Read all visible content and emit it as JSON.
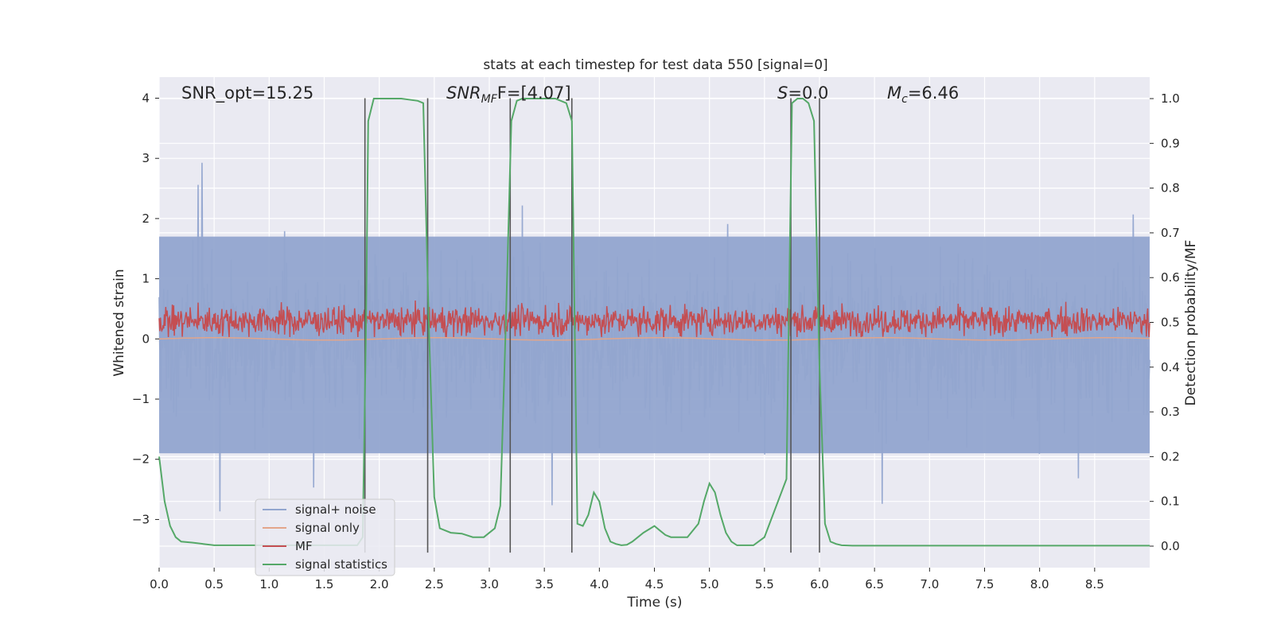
{
  "chart_data": {
    "type": "line",
    "title": "stats at each timestep for test data 550 [signal=0]",
    "xlabel": "Time (s)",
    "ylabel": "Whitened strain",
    "ylabel_right": "Detection probability/MF",
    "xlim": [
      0.0,
      9.0
    ],
    "ylim": [
      -3.8,
      4.35
    ],
    "ylim_right": [
      -0.048,
      1.048
    ],
    "xticks": [
      "0.0",
      "0.5",
      "1.0",
      "1.5",
      "2.0",
      "2.5",
      "3.0",
      "3.5",
      "4.0",
      "4.5",
      "5.0",
      "5.5",
      "6.0",
      "6.5",
      "7.0",
      "7.5",
      "8.0",
      "8.5"
    ],
    "yticks": [
      "4",
      "3",
      "2",
      "1",
      "0",
      "−1",
      "−2",
      "−3"
    ],
    "yticks_right": [
      "1.0",
      "0.9",
      "0.8",
      "0.7",
      "0.6",
      "0.5",
      "0.4",
      "0.3",
      "0.2",
      "0.1",
      "0.0"
    ],
    "annotations": {
      "snr_opt": "SNR_opt=15.25",
      "snr_mf_main": "SNR",
      "snr_mf_sub": "MF",
      "snr_mf_rest": "F=[4.07]",
      "s_main": "S",
      "s_rest": "=0.0",
      "mc_main": "M",
      "mc_sub": "c",
      "mc_rest": "=6.46"
    },
    "legend": {
      "placement": "lower-left",
      "entries": [
        {
          "label": "signal+ noise",
          "color": "#92a5cf"
        },
        {
          "label": "signal only",
          "color": "#e3a58a"
        },
        {
          "label": "MF",
          "color": "#c44e52"
        },
        {
          "label": "signal statistics",
          "color": "#55a868"
        }
      ]
    },
    "grid": true,
    "vertical_markers": {
      "color": "#555555",
      "x": [
        1.87,
        2.44,
        3.19,
        3.75,
        5.74,
        6.0
      ],
      "y_top": 4.0,
      "y_bottom": -3.55
    },
    "series": [
      {
        "name": "signal statistics",
        "color": "#55a868",
        "axis": "right",
        "x": [
          0.0,
          0.05,
          0.1,
          0.15,
          0.2,
          0.3,
          0.4,
          0.5,
          0.7,
          1.0,
          1.5,
          1.8,
          1.85,
          1.88,
          1.9,
          1.95,
          2.0,
          2.2,
          2.35,
          2.4,
          2.45,
          2.5,
          2.55,
          2.65,
          2.75,
          2.85,
          2.95,
          3.05,
          3.1,
          3.15,
          3.2,
          3.25,
          3.3,
          3.4,
          3.5,
          3.6,
          3.7,
          3.75,
          3.8,
          3.85,
          3.9,
          3.95,
          4.0,
          4.05,
          4.1,
          4.15,
          4.2,
          4.25,
          4.3,
          4.4,
          4.5,
          4.55,
          4.6,
          4.65,
          4.7,
          4.8,
          4.9,
          4.95,
          5.0,
          5.05,
          5.1,
          5.15,
          5.2,
          5.25,
          5.3,
          5.4,
          5.5,
          5.7,
          5.75,
          5.8,
          5.85,
          5.9,
          5.95,
          6.0,
          6.05,
          6.1,
          6.15,
          6.2,
          6.3,
          6.5,
          7.0,
          8.0,
          9.0
        ],
        "y": [
          0.2,
          0.1,
          0.045,
          0.02,
          0.01,
          0.008,
          0.005,
          0.002,
          0.002,
          0.002,
          0.002,
          0.002,
          0.02,
          0.5,
          0.95,
          1.0,
          1.0,
          1.0,
          0.995,
          0.99,
          0.5,
          0.11,
          0.04,
          0.03,
          0.028,
          0.02,
          0.02,
          0.04,
          0.09,
          0.5,
          0.95,
          0.995,
          1.0,
          1.0,
          1.0,
          1.0,
          0.99,
          0.95,
          0.05,
          0.045,
          0.07,
          0.12,
          0.1,
          0.04,
          0.01,
          0.005,
          0.002,
          0.003,
          0.01,
          0.03,
          0.045,
          0.035,
          0.025,
          0.02,
          0.02,
          0.02,
          0.05,
          0.1,
          0.14,
          0.12,
          0.07,
          0.03,
          0.01,
          0.002,
          0.002,
          0.002,
          0.02,
          0.15,
          0.99,
          1.0,
          1.0,
          0.99,
          0.95,
          0.4,
          0.05,
          0.01,
          0.005,
          0.002,
          0.001,
          0.001,
          0.001,
          0.001,
          0.001
        ]
      }
    ]
  }
}
